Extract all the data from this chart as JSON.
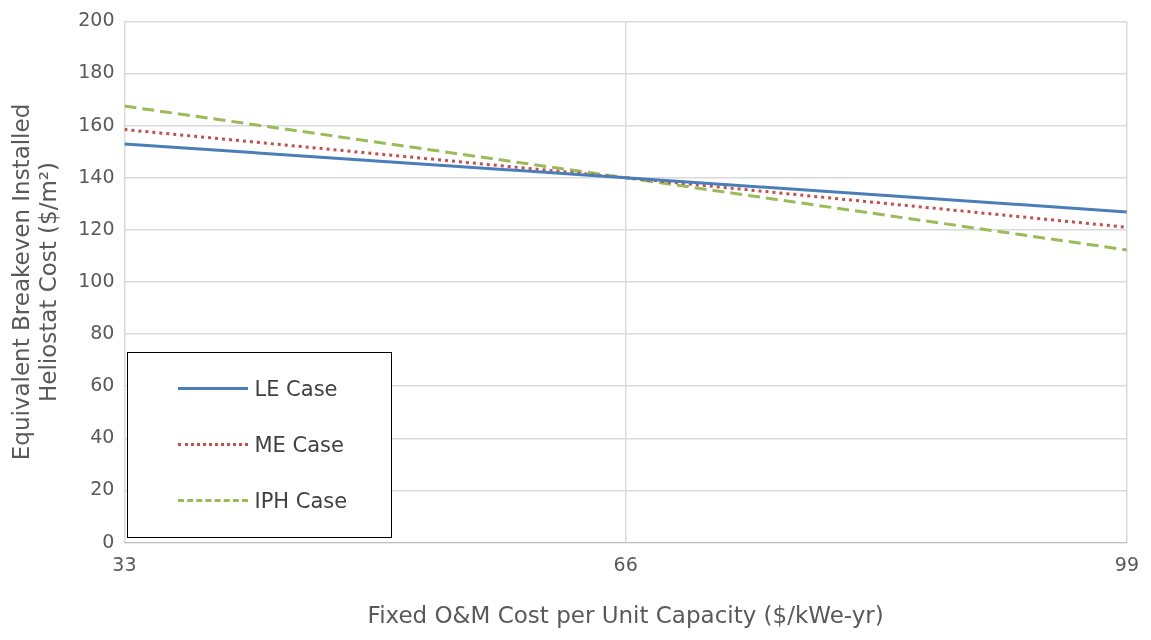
{
  "chart_data": {
    "type": "line",
    "xlabel": "Fixed O&M Cost per Unit Capacity ($/kWe-yr)",
    "ylabel": "Equivalent Breakeven Installed Heliostat Cost ($/m²)",
    "x": [
      33,
      66,
      99
    ],
    "xlim": [
      33,
      99
    ],
    "xticks": [
      33,
      66,
      99
    ],
    "ylim": [
      0,
      200
    ],
    "yticks": [
      0,
      20,
      40,
      60,
      80,
      100,
      120,
      140,
      160,
      180,
      200
    ],
    "grid": true,
    "legend": "bottom left",
    "marker": "none",
    "series": [
      {
        "name": "LE Case",
        "color": "#4a7ebb",
        "line_style": "solid",
        "values": [
          153,
          140,
          126.9
        ]
      },
      {
        "name": "ME Case",
        "color": "#c0504d",
        "line_style": "dotted",
        "values": [
          158.5,
          140,
          121
        ]
      },
      {
        "name": "IPH Case",
        "color": "#9bbb59",
        "line_style": "dashed",
        "values": [
          167.5,
          140,
          112.3
        ]
      }
    ]
  }
}
